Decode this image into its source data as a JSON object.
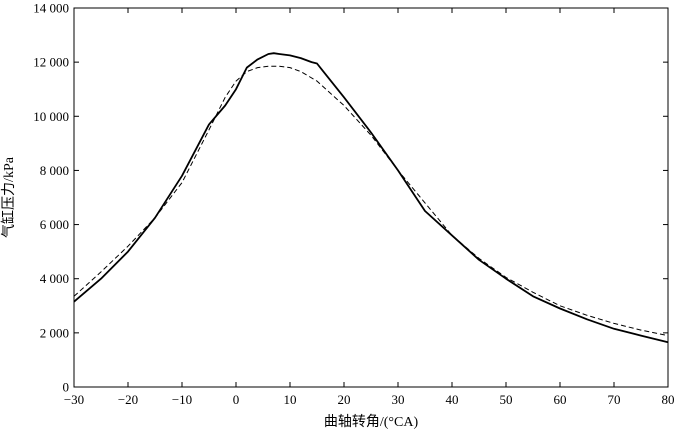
{
  "chart_data": {
    "type": "line",
    "xlabel": "曲轴转角/(°CA)",
    "ylabel": "气缸压力/kPa",
    "xlim": [
      -30,
      80
    ],
    "ylim": [
      0,
      14000
    ],
    "grid": false,
    "x_ticks": [
      -30,
      -20,
      -10,
      0,
      10,
      20,
      30,
      40,
      50,
      60,
      70,
      80
    ],
    "x_tick_labels": [
      "−30",
      "−20",
      "−10",
      "0",
      "10",
      "20",
      "30",
      "40",
      "50",
      "60",
      "70",
      "80"
    ],
    "y_ticks": [
      0,
      2000,
      4000,
      6000,
      8000,
      10000,
      12000,
      14000
    ],
    "y_tick_labels": [
      "0",
      "2 000",
      "4 000",
      "6 000",
      "8 000",
      "10 000",
      "12 000",
      "14 000"
    ],
    "series": [
      {
        "style": "solid",
        "color": "#000000",
        "x": [
          -30,
          -25,
          -20,
          -15,
          -10,
          -5,
          -2,
          0,
          2,
          4,
          6,
          7,
          8,
          10,
          12,
          14,
          15,
          16,
          18,
          20,
          25,
          30,
          35,
          40,
          45,
          50,
          55,
          60,
          65,
          70,
          75,
          80
        ],
        "y": [
          3150,
          4000,
          5000,
          6250,
          7800,
          9700,
          10400,
          11000,
          11800,
          12100,
          12300,
          12330,
          12300,
          12250,
          12150,
          12000,
          11950,
          11700,
          11200,
          10700,
          9400,
          8000,
          6500,
          5600,
          4700,
          4000,
          3350,
          2900,
          2500,
          2150,
          1900,
          1650
        ]
      },
      {
        "style": "dashed",
        "color": "#000000",
        "x": [
          -30,
          -25,
          -20,
          -15,
          -10,
          -5,
          -2,
          0,
          2,
          4,
          6,
          8,
          10,
          12,
          15,
          20,
          25,
          30,
          35,
          40,
          45,
          50,
          55,
          60,
          65,
          70,
          75,
          80
        ],
        "y": [
          3350,
          4250,
          5200,
          6250,
          7550,
          9500,
          10700,
          11300,
          11650,
          11800,
          11850,
          11850,
          11800,
          11650,
          11300,
          10400,
          9300,
          8000,
          6800,
          5600,
          4750,
          4050,
          3500,
          3000,
          2650,
          2350,
          2100,
          1900
        ]
      }
    ]
  }
}
